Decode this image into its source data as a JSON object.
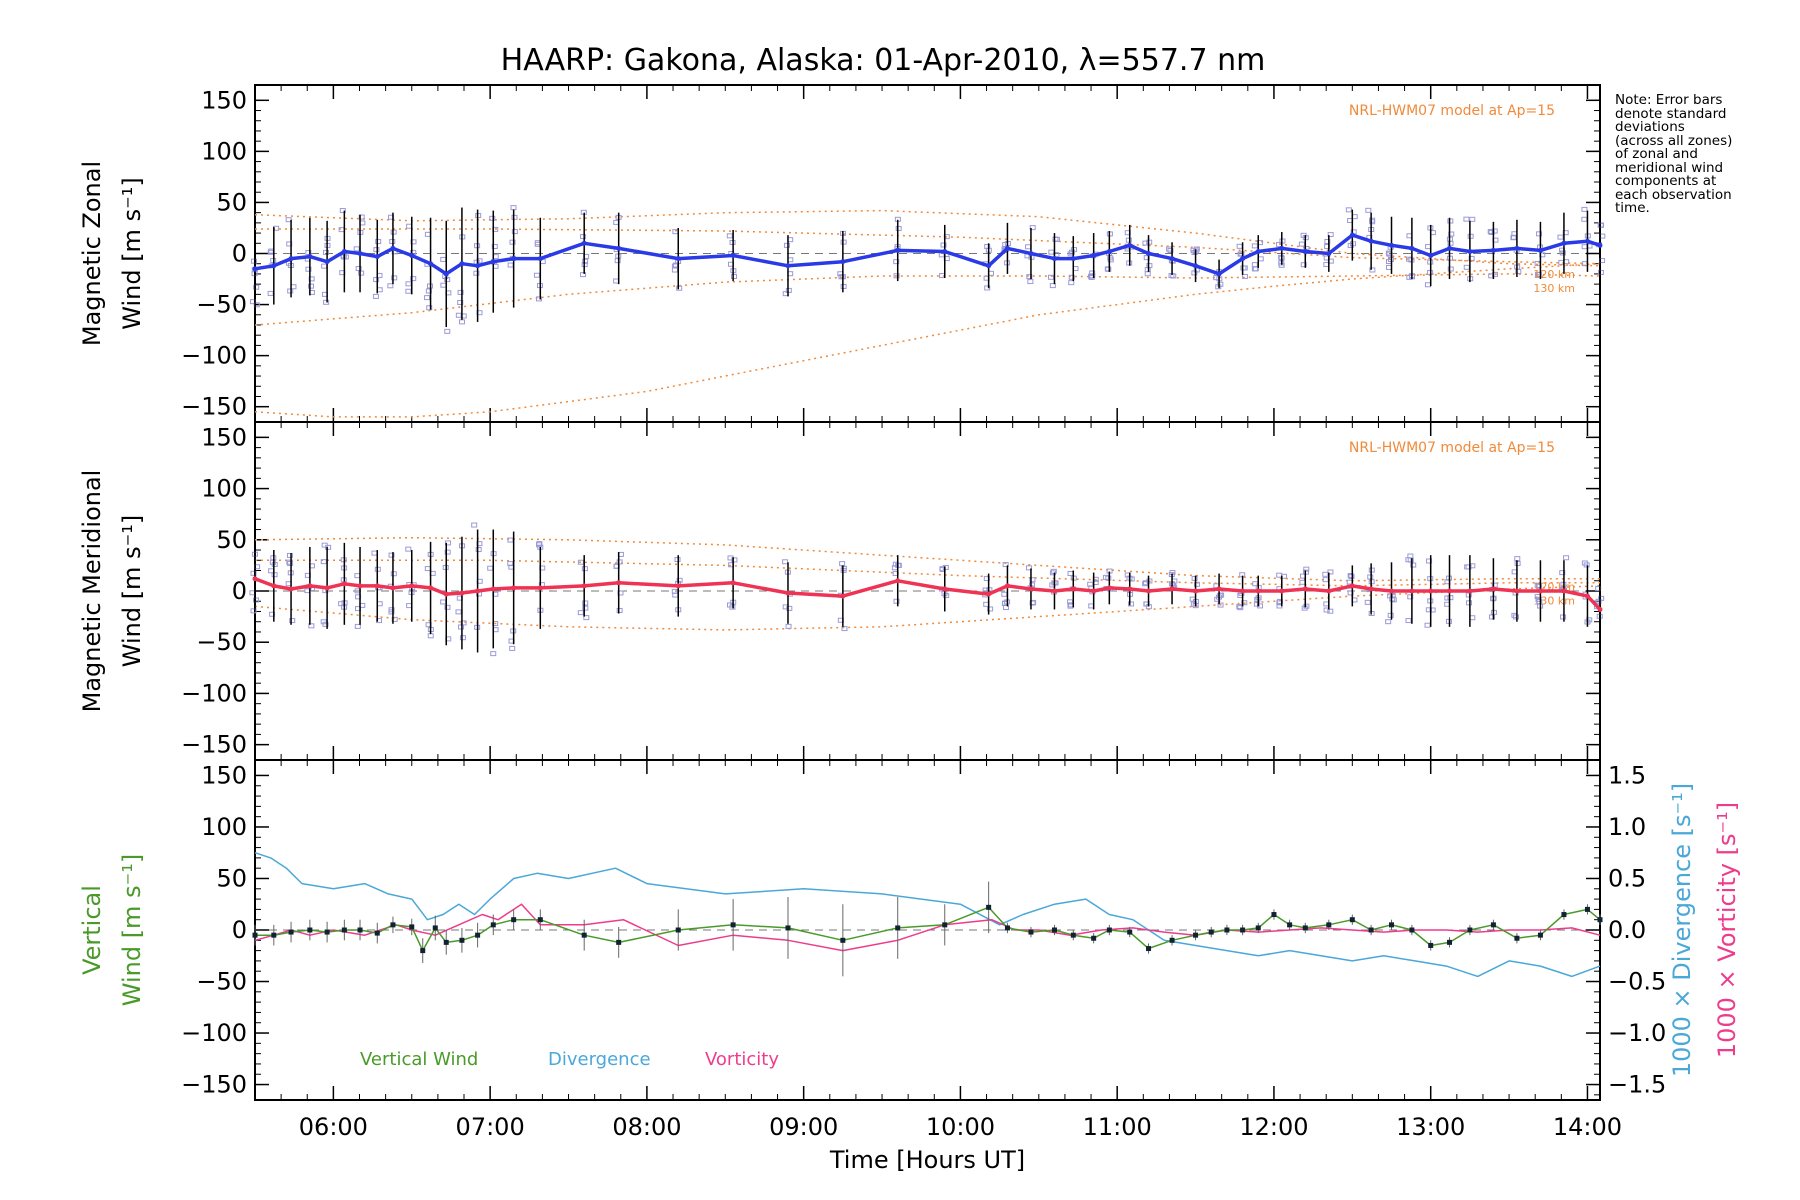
{
  "title": "HAARP: Gakona,  Alaska: 01-Apr-2010, λ=557.7 nm",
  "note_lines": [
    "Note: Error bars",
    "denote standard",
    "deviations",
    "(across all zones)",
    "of zonal and",
    "meridional wind",
    "components at",
    "each observation",
    "time."
  ],
  "colors": {
    "zonal": "#2a3ae6",
    "meridional": "#ee3355",
    "vertical": "#4a9a2a",
    "divergence": "#4aa8d8",
    "vorticity": "#ee3c8c",
    "model": "#f08a3a",
    "scatter": "#9a9ad8",
    "errorbar": "#000000"
  },
  "chart_data": [
    {
      "id": "zonal",
      "type": "line",
      "ylabel": [
        "Magnetic Zonal",
        "Wind [m s⁻¹]"
      ],
      "ylim": [
        -165,
        165
      ],
      "yticks": [
        "150",
        "100",
        "50",
        "0",
        "−50",
        "−100",
        "−150"
      ],
      "ytick_values": [
        150,
        100,
        50,
        0,
        -50,
        -100,
        -150
      ],
      "model_label": "NRL-HWM07 model at Ap=15",
      "model_alt_labels": [
        "120 km",
        "130 km"
      ],
      "series": [
        {
          "name": "zonal",
          "x": [
            5.5,
            5.62,
            5.73,
            5.85,
            5.96,
            6.07,
            6.17,
            6.28,
            6.38,
            6.5,
            6.62,
            6.72,
            6.82,
            6.92,
            7.02,
            7.15,
            7.32,
            7.6,
            7.82,
            8.2,
            8.55,
            8.9,
            9.25,
            9.6,
            9.9,
            10.18,
            10.3,
            10.45,
            10.6,
            10.72,
            10.85,
            10.95,
            11.08,
            11.2,
            11.35,
            11.5,
            11.65,
            11.8,
            11.9,
            12.05,
            12.2,
            12.35,
            12.5,
            12.62,
            12.75,
            12.88,
            13.0,
            13.12,
            13.25,
            13.4,
            13.55,
            13.7,
            13.85,
            14.0,
            14.08
          ],
          "y": [
            -15,
            -12,
            -5,
            -3,
            -8,
            2,
            0,
            -3,
            5,
            -2,
            -10,
            -20,
            -10,
            -12,
            -8,
            -5,
            -5,
            10,
            5,
            -5,
            -2,
            -12,
            -8,
            3,
            2,
            -12,
            5,
            0,
            -5,
            -5,
            -2,
            2,
            8,
            0,
            -5,
            -12,
            -20,
            -5,
            2,
            5,
            2,
            0,
            18,
            12,
            8,
            5,
            -2,
            5,
            2,
            3,
            5,
            3,
            10,
            12,
            8
          ],
          "yerr": [
            38,
            38,
            38,
            38,
            40,
            40,
            38,
            36,
            35,
            38,
            45,
            52,
            55,
            55,
            50,
            48,
            40,
            30,
            35,
            30,
            25,
            30,
            30,
            30,
            26,
            22,
            25,
            25,
            25,
            22,
            22,
            20,
            20,
            18,
            16,
            16,
            14,
            16,
            16,
            16,
            16,
            18,
            25,
            28,
            28,
            30,
            30,
            30,
            30,
            28,
            28,
            28,
            30,
            30,
            30
          ]
        },
        {
          "name": "model-120km",
          "x": [
            5.5,
            6.5,
            7.5,
            8.5,
            9.5,
            10.5,
            11.5,
            12.5,
            13.5,
            14.08
          ],
          "y": [
            38,
            32,
            34,
            40,
            42,
            36,
            20,
            0,
            -10,
            -12
          ]
        },
        {
          "name": "model-130km",
          "x": [
            5.5,
            6.5,
            7.5,
            8.5,
            9.5,
            10.5,
            11.5,
            12.5,
            13.5,
            14.08
          ],
          "y": [
            -70,
            -58,
            -40,
            -28,
            -22,
            -22,
            -24,
            -22,
            -20,
            -22
          ]
        },
        {
          "name": "model-low",
          "x": [
            5.5,
            6.0,
            6.5,
            7.0,
            7.5,
            8.0,
            8.5,
            9.0,
            9.5,
            10.0,
            10.5,
            11.0,
            11.5,
            12.0,
            12.5,
            13.0,
            13.5,
            14.08
          ],
          "y": [
            -155,
            -160,
            -160,
            -155,
            -145,
            -135,
            -120,
            -105,
            -90,
            -75,
            -60,
            -50,
            -40,
            -32,
            -25,
            -20,
            -15,
            -10
          ]
        },
        {
          "name": "model-upper",
          "x": [
            5.5,
            7.0,
            8.5,
            10.0,
            11.5,
            12.5,
            13.5,
            14.08
          ],
          "y": [
            24,
            24,
            22,
            16,
            6,
            -4,
            -8,
            -10
          ]
        }
      ]
    },
    {
      "id": "meridional",
      "type": "line",
      "ylabel": [
        "Magnetic Meridional",
        "Wind [m s⁻¹]"
      ],
      "ylim": [
        -165,
        165
      ],
      "yticks": [
        "150",
        "100",
        "50",
        "0",
        "−50",
        "−100",
        "−150"
      ],
      "ytick_values": [
        150,
        100,
        50,
        0,
        -50,
        -100,
        -150
      ],
      "model_label": "NRL-HWM07 model at Ap=15",
      "model_alt_labels": [
        "120 km",
        "130 km"
      ],
      "series": [
        {
          "name": "meridional",
          "x": [
            5.5,
            5.62,
            5.73,
            5.85,
            5.96,
            6.07,
            6.17,
            6.28,
            6.38,
            6.5,
            6.62,
            6.72,
            6.82,
            6.92,
            7.02,
            7.15,
            7.32,
            7.6,
            7.82,
            8.2,
            8.55,
            8.9,
            9.25,
            9.6,
            9.9,
            10.18,
            10.3,
            10.45,
            10.6,
            10.72,
            10.85,
            10.95,
            11.08,
            11.2,
            11.35,
            11.5,
            11.65,
            11.8,
            11.9,
            12.05,
            12.2,
            12.35,
            12.5,
            12.62,
            12.75,
            12.88,
            13.0,
            13.12,
            13.25,
            13.4,
            13.55,
            13.7,
            13.85,
            14.0,
            14.08
          ],
          "y": [
            12,
            5,
            2,
            5,
            3,
            7,
            5,
            5,
            3,
            5,
            3,
            -3,
            -2,
            0,
            2,
            3,
            3,
            5,
            8,
            5,
            8,
            -2,
            -5,
            10,
            2,
            -3,
            5,
            2,
            0,
            2,
            0,
            3,
            2,
            0,
            2,
            0,
            2,
            0,
            0,
            0,
            2,
            0,
            5,
            2,
            0,
            0,
            0,
            0,
            0,
            2,
            0,
            0,
            0,
            -5,
            -18
          ],
          "yerr": [
            30,
            35,
            35,
            38,
            40,
            40,
            38,
            35,
            35,
            35,
            45,
            50,
            55,
            60,
            58,
            55,
            40,
            30,
            30,
            30,
            25,
            30,
            30,
            25,
            22,
            20,
            20,
            20,
            18,
            18,
            18,
            16,
            16,
            15,
            15,
            15,
            15,
            15,
            15,
            15,
            18,
            18,
            20,
            25,
            28,
            32,
            35,
            35,
            35,
            30,
            30,
            30,
            30,
            30,
            25
          ]
        },
        {
          "name": "model-120km",
          "x": [
            5.5,
            6.5,
            7.5,
            8.5,
            9.5,
            10.5,
            11.5,
            12.5,
            13.5,
            14.08
          ],
          "y": [
            50,
            52,
            50,
            45,
            35,
            25,
            15,
            10,
            12,
            12
          ]
        },
        {
          "name": "model-130km",
          "x": [
            5.5,
            6.5,
            7.5,
            8.5,
            9.5,
            10.5,
            11.5,
            12.5,
            13.5,
            14.08
          ],
          "y": [
            -15,
            -28,
            -35,
            -38,
            -35,
            -25,
            -15,
            -5,
            2,
            5
          ]
        },
        {
          "name": "model-upper",
          "x": [
            5.5,
            7.0,
            8.5,
            10.0,
            11.5,
            12.5,
            13.5,
            14.08
          ],
          "y": [
            30,
            30,
            25,
            15,
            8,
            5,
            8,
            8
          ]
        }
      ]
    },
    {
      "id": "vertical",
      "type": "line",
      "ylabel": [
        "Vertical",
        "Wind [m s⁻¹]"
      ],
      "ylim": [
        -165,
        165
      ],
      "yticks": [
        "150",
        "100",
        "50",
        "0",
        "−50",
        "−100",
        "−150"
      ],
      "ytick_values": [
        150,
        100,
        50,
        0,
        -50,
        -100,
        -150
      ],
      "y2label": [
        "1000 × Divergence [s⁻¹]",
        "1000 × Vorticity [s⁻¹]"
      ],
      "y2lim": [
        -1.65,
        1.65
      ],
      "y2ticks": [
        "1.5",
        "1.0",
        "0.5",
        "0.0",
        "−0.5",
        "−1.0",
        "−1.5"
      ],
      "y2tick_values": [
        1.5,
        1.0,
        0.5,
        0.0,
        -0.5,
        -1.0,
        -1.5
      ],
      "legend": [
        "Vertical Wind",
        "Divergence",
        "Vorticity"
      ],
      "series": [
        {
          "name": "Vertical Wind",
          "x": [
            5.5,
            5.62,
            5.73,
            5.85,
            5.96,
            6.07,
            6.17,
            6.28,
            6.38,
            6.5,
            6.57,
            6.65,
            6.72,
            6.82,
            6.92,
            7.02,
            7.15,
            7.32,
            7.6,
            7.82,
            8.2,
            8.55,
            8.9,
            9.25,
            9.6,
            9.9,
            10.18,
            10.3,
            10.45,
            10.6,
            10.72,
            10.85,
            10.95,
            11.08,
            11.2,
            11.35,
            11.5,
            11.6,
            11.7,
            11.8,
            11.9,
            12.0,
            12.1,
            12.2,
            12.35,
            12.5,
            12.62,
            12.75,
            12.88,
            13.0,
            13.12,
            13.25,
            13.4,
            13.55,
            13.7,
            13.85,
            14.0,
            14.08
          ],
          "y": [
            -5,
            -5,
            -2,
            0,
            -2,
            0,
            0,
            -3,
            5,
            3,
            -20,
            2,
            -12,
            -10,
            -5,
            5,
            10,
            10,
            -5,
            -12,
            0,
            5,
            2,
            -10,
            2,
            5,
            22,
            2,
            -2,
            0,
            -5,
            -8,
            0,
            -2,
            -18,
            -10,
            -5,
            -2,
            0,
            0,
            2,
            15,
            5,
            2,
            5,
            10,
            0,
            5,
            0,
            -15,
            -12,
            0,
            5,
            -8,
            -5,
            15,
            20,
            10
          ],
          "yerr": [
            10,
            10,
            10,
            10,
            10,
            10,
            10,
            10,
            8,
            8,
            12,
            12,
            12,
            12,
            12,
            10,
            10,
            10,
            15,
            15,
            20,
            25,
            30,
            35,
            30,
            20,
            25,
            5,
            5,
            5,
            5,
            5,
            5,
            5,
            5,
            5,
            5,
            5,
            5,
            5,
            5,
            5,
            5,
            5,
            5,
            5,
            5,
            5,
            5,
            5,
            5,
            5,
            5,
            5,
            5,
            5,
            5,
            5
          ]
        },
        {
          "name": "Divergence",
          "x": [
            5.5,
            5.6,
            5.7,
            5.8,
            6.0,
            6.2,
            6.35,
            6.5,
            6.6,
            6.7,
            6.8,
            6.9,
            7.0,
            7.15,
            7.3,
            7.5,
            7.8,
            8.0,
            8.5,
            9.0,
            9.5,
            10.0,
            10.25,
            10.4,
            10.6,
            10.8,
            10.95,
            11.1,
            11.3,
            11.5,
            11.7,
            11.9,
            12.1,
            12.3,
            12.5,
            12.7,
            12.9,
            13.1,
            13.3,
            13.5,
            13.7,
            13.9,
            14.08
          ],
          "y": [
            0.75,
            0.7,
            0.6,
            0.45,
            0.4,
            0.45,
            0.35,
            0.3,
            0.1,
            0.15,
            0.25,
            0.15,
            0.3,
            0.5,
            0.55,
            0.5,
            0.6,
            0.45,
            0.35,
            0.4,
            0.35,
            0.25,
            0.05,
            0.15,
            0.25,
            0.3,
            0.15,
            0.1,
            -0.1,
            -0.15,
            -0.2,
            -0.25,
            -0.2,
            -0.25,
            -0.3,
            -0.25,
            -0.3,
            -0.35,
            -0.45,
            -0.3,
            -0.35,
            -0.45,
            -0.35
          ]
        },
        {
          "name": "Vorticity",
          "x": [
            5.5,
            5.62,
            5.73,
            5.85,
            6.0,
            6.2,
            6.4,
            6.5,
            6.65,
            6.8,
            6.95,
            7.05,
            7.2,
            7.32,
            7.45,
            7.6,
            7.85,
            8.2,
            8.55,
            8.9,
            9.25,
            9.6,
            9.9,
            10.2,
            10.35,
            10.5,
            10.7,
            10.9,
            11.1,
            11.3,
            11.5,
            11.7,
            11.9,
            12.1,
            12.3,
            12.5,
            12.7,
            12.9,
            13.1,
            13.3,
            13.5,
            13.7,
            13.9,
            14.08
          ],
          "y": [
            -0.1,
            -0.05,
            0.0,
            -0.05,
            0.0,
            -0.05,
            0.05,
            0.0,
            -0.05,
            0.05,
            0.15,
            0.1,
            0.25,
            0.05,
            0.05,
            0.05,
            0.1,
            -0.15,
            -0.05,
            -0.1,
            -0.2,
            -0.1,
            0.05,
            0.1,
            0.0,
            0.0,
            -0.05,
            0.0,
            0.02,
            -0.02,
            -0.05,
            0.0,
            -0.02,
            0.0,
            0.02,
            0.0,
            -0.02,
            0.0,
            0.0,
            -0.02,
            0.0,
            0.0,
            0.02,
            -0.05
          ]
        }
      ]
    }
  ],
  "xaxis": {
    "label": "Time [Hours UT]",
    "xlim": [
      5.5,
      14.08
    ],
    "ticks": [
      "06:00",
      "07:00",
      "08:00",
      "09:00",
      "10:00",
      "11:00",
      "12:00",
      "13:00",
      "14:00"
    ],
    "tick_values": [
      6,
      7,
      8,
      9,
      10,
      11,
      12,
      13,
      14
    ]
  }
}
